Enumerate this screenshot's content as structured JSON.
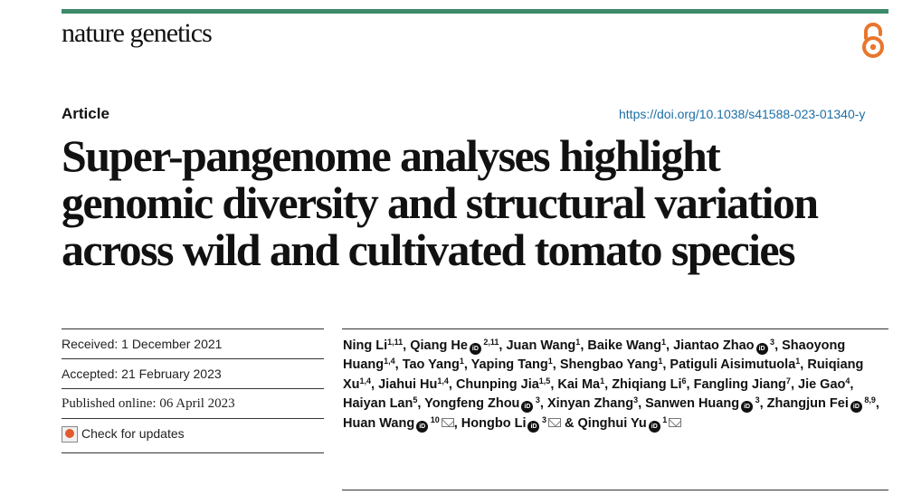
{
  "header": {
    "journal": "nature genetics",
    "article_type": "Article",
    "doi": "https://doi.org/10.1038/s41588-023-01340-y",
    "brand_color": "#3d8a6b",
    "oa_color": "#e8762d"
  },
  "title_lines": [
    "Super-pangenome analyses highlight",
    "genomic diversity and structural variation",
    "across wild and cultivated tomato species"
  ],
  "meta": {
    "received": "Received: 1 December 2021",
    "accepted": "Accepted: 21 February 2023",
    "published": "Published online: 06 April 2023",
    "check_updates": "Check for updates"
  },
  "authors": [
    {
      "name": "Ning Li",
      "sup": "1,11",
      "orcid": false,
      "mail": false
    },
    {
      "name": "Qiang He",
      "sup": "2,11",
      "orcid": true,
      "mail": false
    },
    {
      "name": "Juan Wang",
      "sup": "1",
      "orcid": false,
      "mail": false
    },
    {
      "name": "Baike Wang",
      "sup": "1",
      "orcid": false,
      "mail": false
    },
    {
      "name": "Jiantao Zhao",
      "sup": "3",
      "orcid": true,
      "mail": false
    },
    {
      "name": "Shaoyong Huang",
      "sup": "1,4",
      "orcid": false,
      "mail": false
    },
    {
      "name": "Tao Yang",
      "sup": "1",
      "orcid": false,
      "mail": false
    },
    {
      "name": "Yaping Tang",
      "sup": "1",
      "orcid": false,
      "mail": false
    },
    {
      "name": "Shengbao Yang",
      "sup": "1",
      "orcid": false,
      "mail": false
    },
    {
      "name": "Patiguli Aisimutuola",
      "sup": "1",
      "orcid": false,
      "mail": false
    },
    {
      "name": "Ruiqiang Xu",
      "sup": "1,4",
      "orcid": false,
      "mail": false
    },
    {
      "name": "Jiahui Hu",
      "sup": "1,4",
      "orcid": false,
      "mail": false
    },
    {
      "name": "Chunping Jia",
      "sup": "1,5",
      "orcid": false,
      "mail": false
    },
    {
      "name": "Kai Ma",
      "sup": "1",
      "orcid": false,
      "mail": false
    },
    {
      "name": "Zhiqiang Li",
      "sup": "6",
      "orcid": false,
      "mail": false
    },
    {
      "name": "Fangling Jiang",
      "sup": "7",
      "orcid": false,
      "mail": false
    },
    {
      "name": "Jie Gao",
      "sup": "4",
      "orcid": false,
      "mail": false
    },
    {
      "name": "Haiyan Lan",
      "sup": "5",
      "orcid": false,
      "mail": false
    },
    {
      "name": "Yongfeng Zhou",
      "sup": "3",
      "orcid": true,
      "mail": false
    },
    {
      "name": "Xinyan Zhang",
      "sup": "3",
      "orcid": false,
      "mail": false
    },
    {
      "name": "Sanwen Huang",
      "sup": "3",
      "orcid": true,
      "mail": false
    },
    {
      "name": "Zhangjun Fei",
      "sup": "8,9",
      "orcid": true,
      "mail": false
    },
    {
      "name": "Huan Wang",
      "sup": "10",
      "orcid": true,
      "mail": true
    },
    {
      "name": "Hongbo Li",
      "sup": "3",
      "orcid": true,
      "mail": true
    },
    {
      "name": "Qinghui Yu",
      "sup": "1",
      "orcid": true,
      "mail": true
    }
  ],
  "icons": {
    "orcid": "orcid-icon",
    "mail": "mail-icon",
    "open_access": "open-access-icon",
    "check_updates": "check-updates-icon"
  }
}
